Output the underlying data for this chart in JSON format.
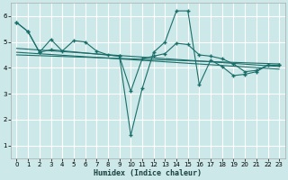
{
  "xlabel": "Humidex (Indice chaleur)",
  "background_color": "#cce8e8",
  "grid_color": "#b0d8d8",
  "line_color": "#1a6e6a",
  "xlim": [
    -0.5,
    23.5
  ],
  "ylim": [
    0.5,
    6.5
  ],
  "xticks": [
    0,
    1,
    2,
    3,
    4,
    5,
    6,
    7,
    8,
    9,
    10,
    11,
    12,
    13,
    14,
    15,
    16,
    17,
    18,
    19,
    20,
    21,
    22,
    23
  ],
  "yticks": [
    1,
    2,
    3,
    4,
    5,
    6
  ],
  "series1_x": [
    0,
    1,
    2,
    3,
    4,
    5,
    6,
    7,
    8,
    9,
    10,
    11,
    12,
    13,
    14,
    15,
    16,
    17,
    18,
    19,
    20,
    21,
    22,
    23
  ],
  "series1_y": [
    5.75,
    5.4,
    4.6,
    5.1,
    4.65,
    5.05,
    5.0,
    4.65,
    4.5,
    4.45,
    3.1,
    4.35,
    4.45,
    4.55,
    4.95,
    4.9,
    4.5,
    4.45,
    4.35,
    4.15,
    3.85,
    3.9,
    4.1,
    4.1
  ],
  "series2_x": [
    0,
    1,
    2,
    3,
    9,
    10,
    11,
    12,
    13,
    14,
    15,
    16,
    17,
    18,
    19,
    20,
    21,
    22,
    23
  ],
  "series2_y": [
    5.75,
    5.4,
    4.6,
    4.7,
    4.45,
    1.4,
    3.2,
    4.6,
    5.0,
    6.2,
    6.2,
    3.35,
    4.3,
    4.05,
    3.7,
    3.75,
    3.85,
    4.1,
    4.1
  ],
  "trend_lines": [
    {
      "x0": 0,
      "x1": 23,
      "y0": 4.75,
      "y1": 4.05
    },
    {
      "x0": 0,
      "x1": 23,
      "y0": 4.6,
      "y1": 3.95
    },
    {
      "x0": 0,
      "x1": 23,
      "y0": 4.5,
      "y1": 4.15
    }
  ]
}
